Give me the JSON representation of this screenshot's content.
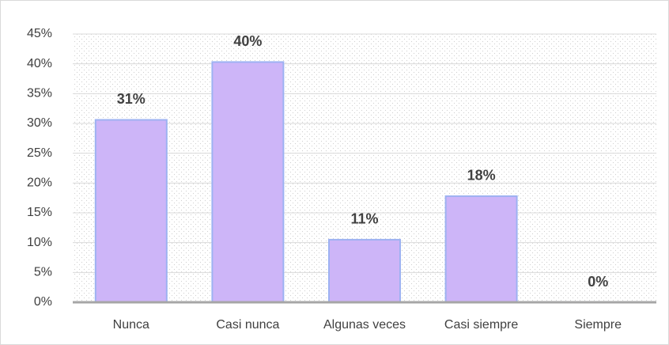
{
  "chart_data": {
    "type": "bar",
    "categories": [
      "Nunca",
      "Casi nunca",
      "Algunas veces",
      "Casi siempre",
      "Siempre"
    ],
    "values": [
      30.6,
      40.3,
      10.5,
      17.8,
      0
    ],
    "value_labels": [
      "31%",
      "40%",
      "11%",
      "18%",
      "0%"
    ],
    "color": "#cdb5f8",
    "ylim": [
      0,
      45
    ],
    "yticks": [
      {
        "value": 0,
        "label": "0%"
      },
      {
        "value": 5,
        "label": "5%"
      },
      {
        "value": 10,
        "label": "10%"
      },
      {
        "value": 15,
        "label": "15%"
      },
      {
        "value": 20,
        "label": "20%"
      },
      {
        "value": 25,
        "label": "25%"
      },
      {
        "value": 30,
        "label": "30%"
      },
      {
        "value": 35,
        "label": "35%"
      },
      {
        "value": 40,
        "label": "40%"
      },
      {
        "value": 45,
        "label": "45%"
      }
    ],
    "grid": true
  }
}
